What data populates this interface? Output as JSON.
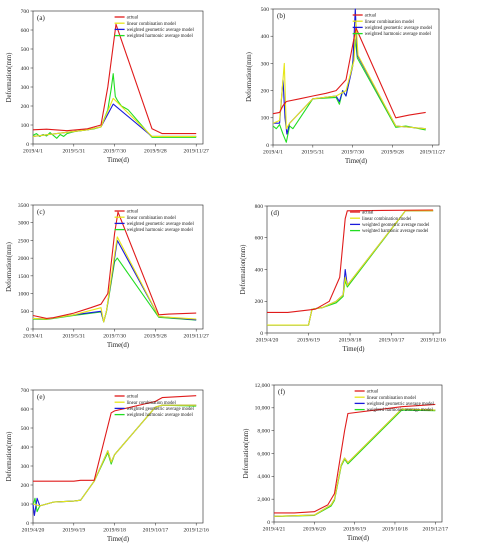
{
  "figure": {
    "legend_labels": [
      "actual",
      "linear combination model",
      "weighted geometric average model",
      "weighted harmonic average model"
    ],
    "colors": {
      "actual": "#e01b1b",
      "linear": "#e6e619",
      "geometric": "#1a1adb",
      "harmonic": "#22dd22"
    }
  },
  "chart_data": [
    {
      "type": "line",
      "panel_label": "(a)",
      "xlabel": "Time(d)",
      "ylabel": "Deformation(mm)",
      "ylim": [
        0,
        700
      ],
      "yticks": [
        0,
        100,
        200,
        300,
        400,
        500,
        600,
        700
      ],
      "xlim": [
        0,
        250
      ],
      "xticks": [
        0,
        60,
        120,
        180,
        240
      ],
      "xtick_labels": [
        "2019/4/1",
        "2019/5/31",
        "2019/7/30",
        "2019/9/28",
        "2019/11/27"
      ],
      "legend_position": "top-right",
      "series": [
        {
          "name": "actual",
          "x": [
            0,
            20,
            50,
            80,
            100,
            110,
            122,
            175,
            190,
            240
          ],
          "y": [
            75,
            78,
            70,
            80,
            100,
            300,
            630,
            80,
            55,
            55
          ]
        },
        {
          "name": "linear combination model",
          "x": [
            0,
            80,
            100,
            118,
            175,
            185,
            240
          ],
          "y": [
            40,
            75,
            90,
            240,
            40,
            40,
            40
          ]
        },
        {
          "name": "weighted geometric average model",
          "x": [
            0,
            80,
            100,
            118,
            175,
            185,
            240
          ],
          "y": [
            40,
            75,
            90,
            210,
            40,
            40,
            40
          ]
        },
        {
          "name": "weighted harmonic average model",
          "x": [
            0,
            5,
            10,
            15,
            20,
            25,
            30,
            35,
            40,
            45,
            50,
            60,
            70,
            80,
            90,
            100,
            110,
            115,
            118,
            121,
            124,
            130,
            140,
            175,
            185,
            240
          ],
          "y": [
            45,
            55,
            40,
            50,
            42,
            60,
            45,
            30,
            50,
            40,
            55,
            65,
            70,
            75,
            80,
            90,
            180,
            290,
            370,
            250,
            230,
            200,
            180,
            35,
            35,
            35
          ]
        }
      ]
    },
    {
      "type": "line",
      "panel_label": "(b)",
      "xlabel": "Time(d)",
      "ylabel": "Deformation(mm)",
      "ylim": [
        0,
        500
      ],
      "yticks": [
        0,
        100,
        200,
        300,
        400,
        500
      ],
      "xlim": [
        0,
        250
      ],
      "xticks": [
        0,
        60,
        120,
        180,
        240
      ],
      "xtick_labels": [
        "2019/4/1",
        "2019/5/31",
        "2019/7/30",
        "2019/9/28",
        "2019/11/27"
      ],
      "legend_position": "top-right",
      "series": [
        {
          "name": "actual",
          "x": [
            0,
            10,
            15,
            20,
            40,
            60,
            80,
            95,
            110,
            125,
            185,
            205,
            230
          ],
          "y": [
            115,
            120,
            145,
            160,
            170,
            180,
            190,
            200,
            240,
            430,
            100,
            110,
            120
          ]
        },
        {
          "name": "linear combination model",
          "x": [
            0,
            10,
            17,
            20,
            25,
            60,
            95,
            110,
            122,
            125,
            128,
            185,
            230
          ],
          "y": [
            80,
            90,
            300,
            60,
            80,
            170,
            180,
            200,
            310,
            450,
            330,
            70,
            60
          ]
        },
        {
          "name": "weighted geometric average model",
          "x": [
            0,
            10,
            15,
            18,
            21,
            25,
            60,
            95,
            100,
            105,
            110,
            120,
            124,
            127,
            185,
            230
          ],
          "y": [
            80,
            80,
            240,
            100,
            40,
            80,
            170,
            180,
            160,
            200,
            180,
            290,
            500,
            330,
            70,
            60
          ]
        },
        {
          "name": "weighted harmonic average model",
          "x": [
            0,
            5,
            10,
            15,
            20,
            25,
            30,
            60,
            95,
            100,
            105,
            110,
            120,
            124,
            127,
            185,
            200,
            230
          ],
          "y": [
            70,
            60,
            75,
            40,
            10,
            70,
            60,
            170,
            175,
            150,
            200,
            180,
            300,
            390,
            320,
            65,
            70,
            55
          ]
        }
      ]
    },
    {
      "type": "line",
      "panel_label": "(c)",
      "xlabel": "Time(d)",
      "ylabel": "Deformation(mm)",
      "ylim": [
        0,
        3500
      ],
      "yticks": [
        0,
        500,
        1000,
        1500,
        2000,
        2500,
        3000,
        3500
      ],
      "xlim": [
        0,
        250
      ],
      "xticks": [
        0,
        60,
        120,
        180,
        240
      ],
      "xtick_labels": [
        "2019/4/1",
        "2019/5/31",
        "2019/7/30",
        "2019/9/28",
        "2019/11/27"
      ],
      "legend_position": "top-right",
      "series": [
        {
          "name": "actual",
          "x": [
            0,
            20,
            30,
            60,
            85,
            100,
            110,
            120,
            125,
            185,
            200,
            240
          ],
          "y": [
            380,
            300,
            320,
            450,
            600,
            700,
            1000,
            2700,
            3300,
            400,
            420,
            450
          ]
        },
        {
          "name": "linear combination model",
          "x": [
            0,
            20,
            60,
            100,
            104,
            108,
            120,
            124,
            185,
            240
          ],
          "y": [
            300,
            280,
            400,
            600,
            200,
            500,
            2100,
            2600,
            350,
            280
          ]
        },
        {
          "name": "weighted geometric average model",
          "x": [
            0,
            20,
            60,
            100,
            104,
            108,
            120,
            124,
            185,
            240
          ],
          "y": [
            300,
            280,
            400,
            500,
            200,
            500,
            2000,
            2500,
            350,
            260
          ]
        },
        {
          "name": "weighted harmonic average model",
          "x": [
            0,
            20,
            60,
            100,
            104,
            108,
            120,
            124,
            185,
            240
          ],
          "y": [
            280,
            270,
            380,
            480,
            200,
            480,
            1900,
            2000,
            330,
            250
          ]
        }
      ]
    },
    {
      "type": "line",
      "panel_label": "(d)",
      "xlabel": "Time(d)",
      "ylabel": "Deformation(mm)",
      "ylim": [
        0,
        800
      ],
      "yticks": [
        0,
        200,
        400,
        600,
        800
      ],
      "xlim": [
        0,
        250
      ],
      "xticks": [
        0,
        60,
        120,
        180,
        240
      ],
      "xtick_labels": [
        "2019/4/20",
        "2019/6/19",
        "2019/8/18",
        "2019/10/17",
        "2019/12/16"
      ],
      "legend_position": "top-right",
      "series": [
        {
          "name": "actual",
          "x": [
            0,
            30,
            50,
            70,
            90,
            105,
            113,
            116,
            240
          ],
          "y": [
            130,
            130,
            140,
            150,
            200,
            350,
            720,
            770,
            775
          ]
        },
        {
          "name": "linear combination model",
          "x": [
            0,
            60,
            65,
            80,
            100,
            110,
            113,
            116,
            200,
            240
          ],
          "y": [
            50,
            50,
            150,
            160,
            200,
            240,
            350,
            300,
            770,
            770
          ]
        },
        {
          "name": "weighted geometric average model",
          "x": [
            0,
            60,
            65,
            80,
            100,
            110,
            113,
            116,
            200,
            240
          ],
          "y": [
            50,
            50,
            150,
            160,
            200,
            240,
            400,
            300,
            770,
            770
          ]
        },
        {
          "name": "weighted harmonic average model",
          "x": [
            0,
            60,
            65,
            80,
            100,
            110,
            113,
            116,
            200,
            240
          ],
          "y": [
            50,
            50,
            150,
            160,
            190,
            230,
            330,
            290,
            770,
            770
          ]
        }
      ]
    },
    {
      "type": "line",
      "panel_label": "(e)",
      "xlabel": "Time(d)",
      "ylabel": "Deformation(mm)",
      "ylim": [
        0,
        700
      ],
      "yticks": [
        0,
        100,
        200,
        300,
        400,
        500,
        600,
        700
      ],
      "xlim": [
        0,
        250
      ],
      "xticks": [
        0,
        60,
        120,
        180,
        240
      ],
      "xtick_labels": [
        "2019/4/20",
        "2019/6/19",
        "2019/8/18",
        "2019/10/17",
        "2019/12/16"
      ],
      "legend_position": "top-right",
      "series": [
        {
          "name": "actual",
          "x": [
            0,
            60,
            70,
            90,
            115,
            120,
            180,
            190,
            240
          ],
          "y": [
            220,
            220,
            225,
            225,
            580,
            590,
            640,
            660,
            670
          ]
        },
        {
          "name": "linear combination model",
          "x": [
            0,
            10,
            20,
            30,
            60,
            70,
            90,
            110,
            115,
            120,
            180,
            190,
            240
          ],
          "y": [
            100,
            90,
            100,
            110,
            115,
            120,
            220,
            380,
            320,
            360,
            610,
            620,
            620
          ]
        },
        {
          "name": "weighted geometric average model",
          "x": [
            0,
            2,
            6,
            10,
            20,
            30,
            60,
            70,
            90,
            110,
            115,
            120,
            180,
            190,
            240
          ],
          "y": [
            100,
            40,
            130,
            90,
            100,
            110,
            115,
            120,
            220,
            380,
            320,
            360,
            610,
            620,
            620
          ]
        },
        {
          "name": "weighted harmonic average model",
          "x": [
            0,
            3,
            6,
            10,
            20,
            30,
            60,
            70,
            90,
            110,
            115,
            120,
            180,
            190,
            240
          ],
          "y": [
            90,
            130,
            60,
            90,
            100,
            110,
            115,
            120,
            220,
            370,
            310,
            360,
            610,
            620,
            615
          ]
        }
      ]
    },
    {
      "type": "line",
      "panel_label": "(f)",
      "xlabel": "Time(d)",
      "ylabel": "Deformation(mm)",
      "ylim": [
        0,
        12000
      ],
      "yticks": [
        0,
        2000,
        4000,
        6000,
        8000,
        10000,
        12000
      ],
      "ytick_labels": [
        "0",
        "2,000",
        "4,000",
        "6,000",
        "8,000",
        "10,000",
        "12,000"
      ],
      "xlim": [
        0,
        250
      ],
      "xticks": [
        0,
        60,
        120,
        180,
        240
      ],
      "xtick_labels": [
        "2019/4/21",
        "2019/6/20",
        "2019/8/19",
        "2019/10/18",
        "2019/12/17"
      ],
      "legend_position": "top-right",
      "series": [
        {
          "name": "actual",
          "x": [
            0,
            30,
            60,
            80,
            90,
            105,
            110,
            190,
            240
          ],
          "y": [
            800,
            800,
            900,
            1500,
            2500,
            8000,
            9500,
            10100,
            10300
          ]
        },
        {
          "name": "linear combination model",
          "x": [
            0,
            60,
            85,
            90,
            100,
            105,
            110,
            190,
            240
          ],
          "y": [
            500,
            600,
            1500,
            2000,
            5000,
            5600,
            5200,
            9900,
            9800
          ]
        },
        {
          "name": "weighted geometric average model",
          "x": [
            0,
            60,
            85,
            90,
            100,
            105,
            110,
            190,
            240
          ],
          "y": [
            500,
            600,
            1500,
            2000,
            5000,
            5600,
            5200,
            9900,
            9800
          ]
        },
        {
          "name": "weighted harmonic average model",
          "x": [
            0,
            60,
            85,
            90,
            100,
            105,
            110,
            190,
            240
          ],
          "y": [
            480,
            580,
            1400,
            1900,
            4900,
            5500,
            5100,
            9800,
            9750
          ]
        }
      ]
    }
  ]
}
